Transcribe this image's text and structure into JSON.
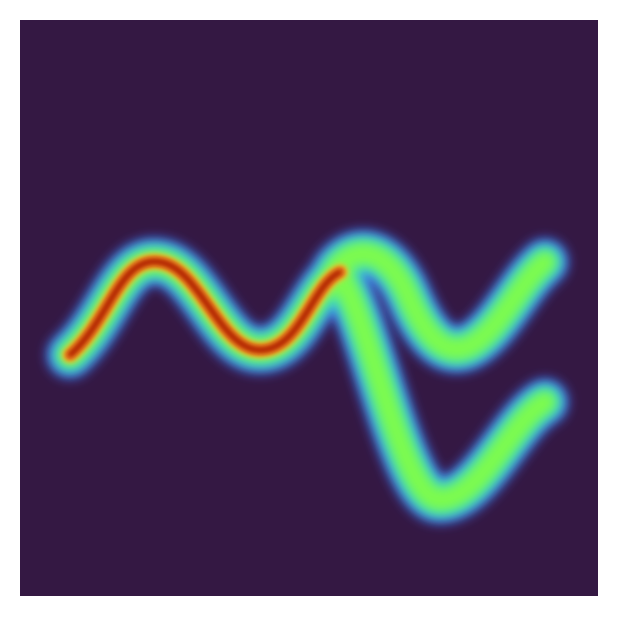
{
  "chart_data": {
    "type": "density",
    "background": "#341843",
    "colormap": [
      "#4660e6",
      "#25d2e6",
      "#7dfb4e",
      "#eecb34",
      "#f0600f",
      "#9a1606"
    ]
  }
}
